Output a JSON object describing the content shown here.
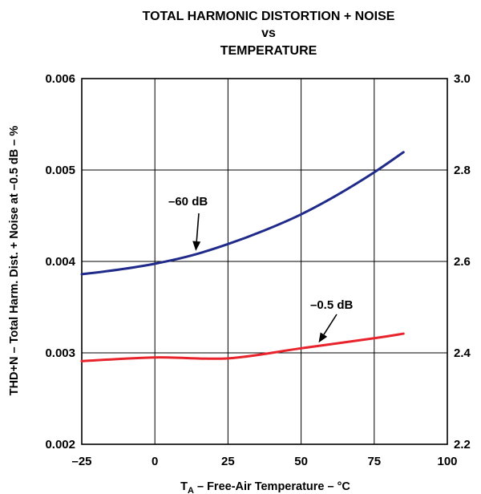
{
  "chart_data": {
    "type": "line",
    "title_lines": [
      "TOTAL HARMONIC DISTORTION + NOISE",
      "vs",
      "TEMPERATURE"
    ],
    "xlabel_main": "T",
    "xlabel_sub": "A",
    "xlabel_rest": " – Free-Air Temperature – °C",
    "ylabel_left": "THD+N – Total Harm. Dist. + Noise at –0.5 dB – %",
    "xlim": [
      -25,
      100
    ],
    "ylim_left": [
      0.002,
      0.006
    ],
    "ylim_right": [
      2.2,
      3.0
    ],
    "x_ticks": [
      -25,
      0,
      25,
      50,
      75,
      100
    ],
    "x_tick_labels": [
      "–25",
      "0",
      "25",
      "50",
      "75",
      "100"
    ],
    "y_left_ticks": [
      0.002,
      0.003,
      0.004,
      0.005,
      0.006
    ],
    "y_left_tick_labels": [
      "0.002",
      "0.003",
      "0.004",
      "0.005",
      "0.006"
    ],
    "y_right_ticks": [
      2.2,
      2.4,
      2.6,
      2.8,
      3.0
    ],
    "y_right_tick_labels": [
      "2.2",
      "2.4",
      "2.6",
      "2.8",
      "3.0"
    ],
    "grid": true,
    "series": [
      {
        "name": "–60 dB",
        "axis": "right",
        "color": "#1f2a8a",
        "x": [
          -25,
          -12.5,
          0,
          12.5,
          25,
          37.5,
          50,
          62.5,
          75,
          85
        ],
        "y": [
          2.572,
          2.582,
          2.595,
          2.613,
          2.638,
          2.668,
          2.703,
          2.746,
          2.795,
          2.839
        ]
      },
      {
        "name": "–0.5 dB",
        "axis": "left",
        "color": "#e8232b",
        "x": [
          -25,
          0,
          25,
          50,
          75,
          85
        ],
        "y": [
          0.00291,
          0.00295,
          0.00294,
          0.00305,
          0.00316,
          0.00321
        ]
      }
    ],
    "annotations": [
      {
        "text": "–60 dB",
        "series": 0
      },
      {
        "text": "–0.5 dB",
        "series": 1
      }
    ]
  }
}
